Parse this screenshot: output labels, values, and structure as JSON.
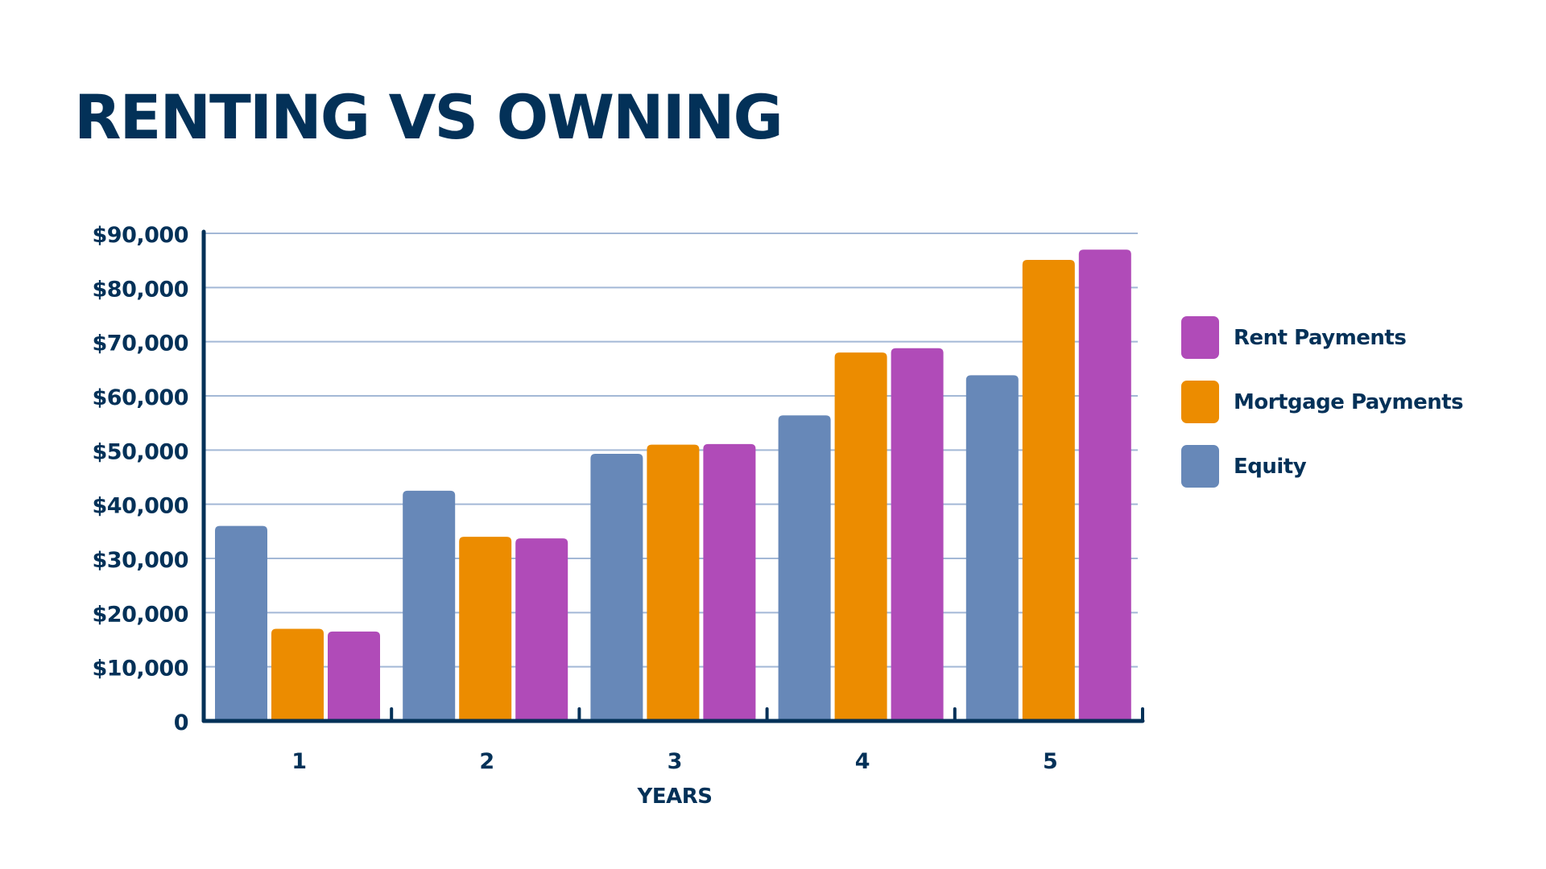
{
  "chart_data": {
    "type": "bar",
    "title": "RENTING VS OWNING",
    "xlabel": "YEARS",
    "ylabel": "",
    "categories": [
      "1",
      "2",
      "3",
      "4",
      "5"
    ],
    "ylim": [
      0,
      90000
    ],
    "yticks": [
      0,
      10000,
      20000,
      30000,
      40000,
      50000,
      60000,
      70000,
      80000,
      90000
    ],
    "ytick_labels": [
      "0",
      "$10,000",
      "$20,000",
      "$30,000",
      "$40,000",
      "$50,000",
      "$60,000",
      "$70,000",
      "$80,000",
      "$90,000"
    ],
    "grid": true,
    "legend_position": "right",
    "series": [
      {
        "name": "Equity",
        "color": "#6788B8",
        "values": [
          36000,
          42500,
          49300,
          56400,
          63800
        ]
      },
      {
        "name": "Mortgage Payments",
        "color": "#EC8C00",
        "values": [
          17000,
          34000,
          51000,
          68000,
          85100
        ]
      },
      {
        "name": "Rent Payments",
        "color": "#B04BB8",
        "values": [
          16500,
          33700,
          51100,
          68800,
          87000
        ]
      }
    ],
    "legend_order": [
      "Rent Payments",
      "Mortgage Payments",
      "Equity"
    ]
  },
  "colors": {
    "text": "#033158",
    "axis": "#033158",
    "grid": "#A3B8D6"
  }
}
